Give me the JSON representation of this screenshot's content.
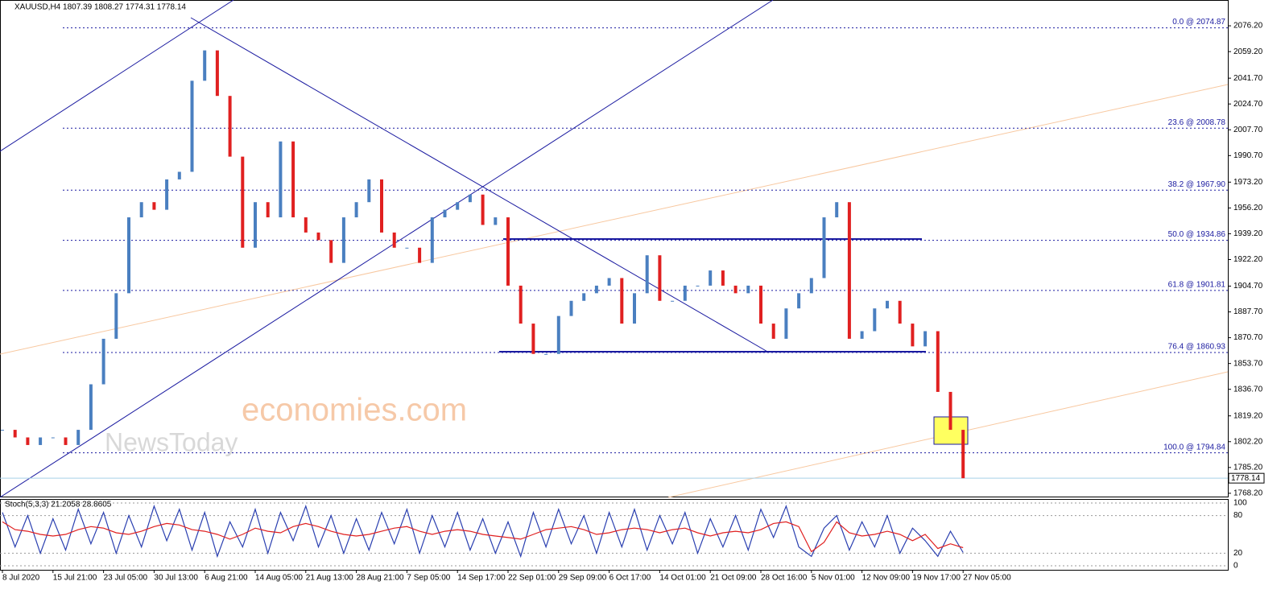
{
  "chart_data": {
    "type": "candle",
    "title": "XAUUSD,H4  1807.39 1808.27 1774.31 1778.14",
    "watermark": [
      "economies.com",
      "NewsToday"
    ],
    "last_price": {
      "value": 1778.14,
      "label": "1778.14"
    },
    "ylim": [
      1765.5,
      2093.2
    ],
    "yticks": [
      {
        "value": 2076.2,
        "label": "2076.20"
      },
      {
        "value": 2059.2,
        "label": "2059.20"
      },
      {
        "value": 2041.7,
        "label": "2041.70"
      },
      {
        "value": 2024.7,
        "label": "2024.70"
      },
      {
        "value": 2007.7,
        "label": "2007.70"
      },
      {
        "value": 1990.7,
        "label": "1990.70"
      },
      {
        "value": 1973.2,
        "label": "1973.20"
      },
      {
        "value": 1956.2,
        "label": "1956.20"
      },
      {
        "value": 1939.2,
        "label": "1939.20"
      },
      {
        "value": 1922.2,
        "label": "1922.20"
      },
      {
        "value": 1904.7,
        "label": "1904.70"
      },
      {
        "value": 1887.7,
        "label": "1887.70"
      },
      {
        "value": 1870.7,
        "label": "1870.70"
      },
      {
        "value": 1853.7,
        "label": "1853.70"
      },
      {
        "value": 1836.7,
        "label": "1836.70"
      },
      {
        "value": 1819.2,
        "label": "1819.20"
      },
      {
        "value": 1802.2,
        "label": "1802.20"
      },
      {
        "value": 1785.2,
        "label": "1785.20"
      },
      {
        "value": 1768.2,
        "label": "1768.20"
      }
    ],
    "fib_levels": [
      {
        "value": 2074.87,
        "label": "0.0 @ 2074.87"
      },
      {
        "value": 2008.78,
        "label": "23.6 @ 2008.78"
      },
      {
        "value": 1967.9,
        "label": "38.2 @ 1967.90"
      },
      {
        "value": 1934.86,
        "label": "50.0 @ 1934.86"
      },
      {
        "value": 1901.81,
        "label": "61.8 @ 1901.81"
      },
      {
        "value": 1860.93,
        "label": "76.4 @ 1860.93"
      },
      {
        "value": 1794.84,
        "label": "100.0 @ 1794.84"
      }
    ],
    "x_labels": [
      "8 Jul 2020",
      "15 Jul 21:00",
      "23 Jul 05:00",
      "30 Jul 13:00",
      "6 Aug 21:00",
      "14 Aug 05:00",
      "21 Aug 13:00",
      "28 Aug 21:00",
      "7 Sep 05:00",
      "14 Sep 17:00",
      "22 Sep 01:00",
      "29 Sep 09:00",
      "6 Oct 17:00",
      "14 Oct 01:00",
      "21 Oct 09:00",
      "28 Oct 16:00",
      "5 Nov 01:00",
      "12 Nov 09:00",
      "19 Nov 17:00",
      "27 Nov 05:00"
    ],
    "close": [
      1810,
      1805,
      1800,
      1805,
      1805,
      1800,
      1810,
      1840,
      1870,
      1900,
      1950,
      1960,
      1955,
      1975,
      1980,
      2040,
      2060,
      2030,
      1990,
      1930,
      1960,
      1950,
      2000,
      1950,
      1940,
      1935,
      1920,
      1950,
      1960,
      1975,
      1940,
      1930,
      1930,
      1920,
      1950,
      1955,
      1960,
      1965,
      1945,
      1950,
      1905,
      1880,
      1860,
      1860,
      1885,
      1895,
      1900,
      1905,
      1910,
      1880,
      1900,
      1925,
      1895,
      1895,
      1905,
      1905,
      1915,
      1905,
      1900,
      1905,
      1880,
      1870,
      1890,
      1900,
      1910,
      1950,
      1960,
      1870,
      1875,
      1890,
      1895,
      1880,
      1865,
      1875,
      1835,
      1810,
      1778.14
    ],
    "up_color": "#4a7fc0",
    "down_color": "#e02020",
    "stoch": {
      "title": "Stoch(5,3,3) 21.2058 28.8605",
      "ylim": [
        0,
        100
      ],
      "yticks": [
        100,
        80,
        20,
        0
      ],
      "series": [
        {
          "name": "main",
          "color": "#2a3fb0",
          "values": [
            85,
            30,
            80,
            20,
            75,
            25,
            90,
            35,
            85,
            20,
            80,
            30,
            95,
            40,
            90,
            25,
            85,
            15,
            70,
            30,
            90,
            20,
            85,
            40,
            95,
            30,
            80,
            20,
            75,
            25,
            85,
            35,
            90,
            20,
            80,
            30,
            85,
            25,
            75,
            20,
            70,
            15,
            85,
            30,
            90,
            35,
            80,
            20,
            85,
            30,
            90,
            25,
            80,
            35,
            85,
            20,
            75,
            30,
            80,
            25,
            90,
            45,
            95,
            30,
            15,
            60,
            80,
            25,
            70,
            30,
            80,
            20,
            60,
            40,
            15,
            55,
            21.2058
          ]
        },
        {
          "name": "signal",
          "color": "#e02020",
          "values": [
            70,
            57.5,
            55,
            50,
            47.5,
            50,
            57.5,
            62.5,
            60,
            52.5,
            50,
            55,
            62.5,
            67.5,
            65,
            57.5,
            55,
            50,
            42.5,
            50,
            60,
            55,
            52.5,
            62.5,
            67.5,
            62.5,
            55,
            50,
            47.5,
            50,
            55,
            60,
            62.5,
            55,
            50,
            55,
            57.5,
            55,
            50,
            47.5,
            45,
            42.5,
            50,
            57.5,
            60,
            62.5,
            57.5,
            50,
            52.5,
            57.5,
            60,
            57.5,
            52.5,
            57.5,
            60,
            52.5,
            47.5,
            52.5,
            55,
            52.5,
            57.5,
            67.5,
            70,
            62.5,
            22.5,
            37.5,
            70,
            52.5,
            47.5,
            50,
            55,
            50,
            40,
            50,
            27.5,
            35,
            28.8605
          ]
        }
      ]
    }
  }
}
